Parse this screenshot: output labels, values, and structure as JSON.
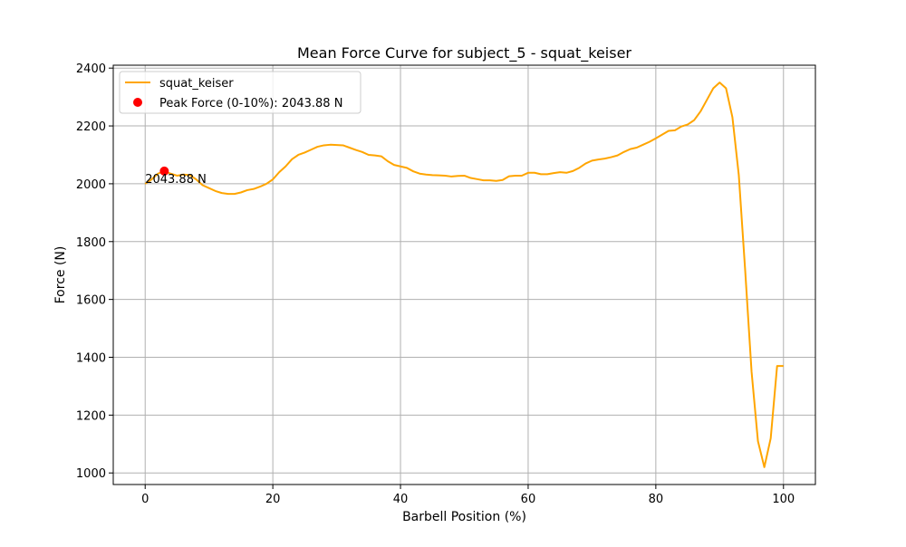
{
  "chart_data": {
    "type": "line",
    "title": "Mean Force Curve for subject_5 - squat_keiser",
    "xlabel": "Barbell Position (%)",
    "ylabel": "Force (N)",
    "xlim": [
      -5,
      105
    ],
    "ylim": [
      960,
      2410
    ],
    "xticks": [
      0,
      20,
      40,
      60,
      80,
      100
    ],
    "yticks": [
      1000,
      1200,
      1400,
      1600,
      1800,
      2000,
      2200,
      2400
    ],
    "grid": true,
    "legend_position": "top-left",
    "series": [
      {
        "name": "squat_keiser",
        "color": "#ffa500",
        "x": [
          0,
          1,
          2,
          3,
          4,
          5,
          6,
          7,
          8,
          9,
          10,
          11,
          12,
          13,
          14,
          15,
          16,
          17,
          18,
          19,
          20,
          21,
          22,
          23,
          24,
          25,
          26,
          27,
          28,
          29,
          30,
          31,
          32,
          33,
          34,
          35,
          36,
          37,
          38,
          39,
          40,
          41,
          42,
          43,
          44,
          45,
          46,
          47,
          48,
          49,
          50,
          51,
          52,
          53,
          54,
          55,
          56,
          57,
          58,
          59,
          60,
          61,
          62,
          63,
          64,
          65,
          66,
          67,
          68,
          69,
          70,
          71,
          72,
          73,
          74,
          75,
          76,
          77,
          78,
          79,
          80,
          81,
          82,
          83,
          84,
          85,
          86,
          87,
          88,
          89,
          90,
          91,
          92,
          93,
          94,
          95,
          96,
          97,
          98,
          99,
          100
        ],
        "y": [
          2000,
          2015,
          2035,
          2044,
          2035,
          2028,
          2032,
          2030,
          2015,
          1995,
          1985,
          1975,
          1968,
          1965,
          1965,
          1970,
          1978,
          1982,
          1990,
          2000,
          2015,
          2040,
          2060,
          2085,
          2100,
          2108,
          2118,
          2128,
          2133,
          2135,
          2134,
          2133,
          2125,
          2117,
          2110,
          2100,
          2098,
          2095,
          2078,
          2065,
          2060,
          2055,
          2043,
          2035,
          2032,
          2030,
          2029,
          2028,
          2025,
          2027,
          2028,
          2020,
          2016,
          2012,
          2012,
          2010,
          2013,
          2026,
          2028,
          2028,
          2038,
          2038,
          2033,
          2033,
          2037,
          2040,
          2038,
          2044,
          2055,
          2070,
          2080,
          2084,
          2087,
          2092,
          2098,
          2110,
          2120,
          2125,
          2135,
          2145,
          2157,
          2170,
          2183,
          2185,
          2198,
          2205,
          2220,
          2250,
          2290,
          2330,
          2350,
          2330,
          2230,
          2030,
          1700,
          1350,
          1110,
          1020,
          1120,
          1370,
          1370
        ]
      },
      {
        "name": "Peak Force (0-10%): 2043.88 N",
        "color": "#ff0000",
        "type": "scatter",
        "x": [
          3
        ],
        "y": [
          2043.88
        ]
      }
    ],
    "annotations": [
      {
        "text": "2043.88 N",
        "x": 0,
        "y": 2000
      }
    ]
  }
}
